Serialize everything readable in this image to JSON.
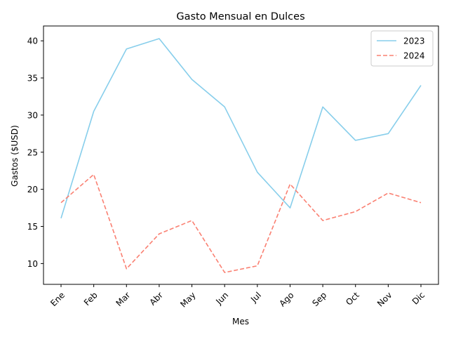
{
  "chart_data": {
    "type": "line",
    "title": "Gasto Mensual en Dulces",
    "xlabel": "Mes",
    "ylabel": "Gastos ($USD)",
    "categories": [
      "Ene",
      "Feb",
      "Mar",
      "Abr",
      "May",
      "Jun",
      "Jul",
      "Ago",
      "Sep",
      "Oct",
      "Nov",
      "Dic"
    ],
    "ylim": [
      7.2,
      42.0
    ],
    "yticks": [
      10,
      15,
      20,
      25,
      30,
      35,
      40
    ],
    "grid": false,
    "legend_position": "top-right",
    "series": [
      {
        "name": "2023",
        "color": "#87ceeb",
        "dash": "solid",
        "values": [
          16.1,
          30.5,
          38.9,
          40.3,
          34.8,
          31.1,
          22.3,
          17.5,
          31.1,
          26.6,
          27.5,
          34.0
        ]
      },
      {
        "name": "2024",
        "color": "#fa8072",
        "dash": "dashed",
        "values": [
          18.2,
          22.0,
          9.3,
          14.0,
          15.8,
          8.8,
          9.7,
          20.7,
          15.8,
          17.0,
          19.5,
          18.2
        ]
      }
    ]
  }
}
